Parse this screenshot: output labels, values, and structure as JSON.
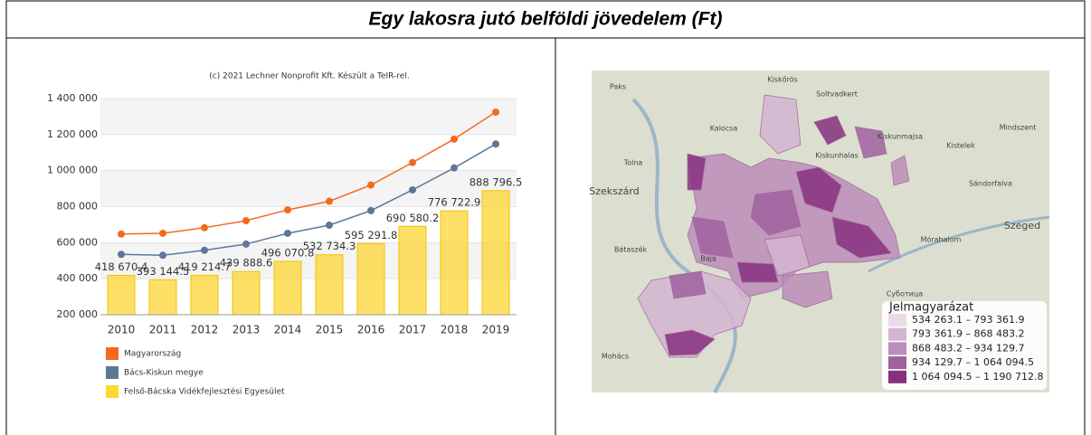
{
  "header": {
    "title": "Egy lakosra jutó belföldi jövedelem (Ft)"
  },
  "chart_data": {
    "type": "combo",
    "subtitle": "(c) 2021 Lechner Nonprofit Kft. Készült a TeIR-rel.",
    "categories": [
      "2010",
      "2011",
      "2012",
      "2013",
      "2014",
      "2015",
      "2016",
      "2017",
      "2018",
      "2019"
    ],
    "ylim": [
      200000,
      1400000
    ],
    "yticks": [
      {
        "value": 200000,
        "label": "200 000"
      },
      {
        "value": 400000,
        "label": "400 000"
      },
      {
        "value": 600000,
        "label": "600 000"
      },
      {
        "value": 800000,
        "label": "800 000"
      },
      {
        "value": 1000000,
        "label": "1 000 000"
      },
      {
        "value": 1200000,
        "label": "1 200 000"
      },
      {
        "value": 1400000,
        "label": "1 400 000"
      }
    ],
    "grid": true,
    "alternate_bands": true,
    "series": [
      {
        "name": "Magyarország",
        "type": "line",
        "color": "#f26b1d",
        "values": [
          648000,
          652000,
          683000,
          722000,
          782000,
          830000,
          920000,
          1045000,
          1175000,
          1325000
        ]
      },
      {
        "name": "Bács-Kiskun megye",
        "type": "line",
        "color": "#5c7899",
        "values": [
          535000,
          530000,
          558000,
          592000,
          652000,
          697000,
          778000,
          893000,
          1015000,
          1148000
        ]
      },
      {
        "name": "Felső-Bácska Vidékfejlesztési Egyesület",
        "type": "bar",
        "color": "#ffd633",
        "values": [
          418670.4,
          393144.5,
          419214.7,
          439888.6,
          496070.8,
          532734.3,
          595291.8,
          690580.2,
          776722.9,
          888796.5
        ],
        "value_labels": [
          "418 670.4",
          "393 144.5",
          "419 214.7",
          "439 888.6",
          "496 070.8",
          "532 734.3",
          "595 291.8",
          "690 580.2",
          "776 722.9",
          "888 796.5"
        ]
      }
    ]
  },
  "map": {
    "places": [
      "Paks",
      "Kiskőrös",
      "Soltvadkert",
      "Kalocsa",
      "Kiskunmajsa",
      "Kistelek",
      "Mindszent",
      "Kiskunhalas",
      "Tolna",
      "Szekszárd",
      "Sándorfalva",
      "Szeged",
      "Mórahalom",
      "Bátaszék",
      "Baja",
      "Суботица",
      "Mohács"
    ],
    "legend": {
      "title": "Jelmagyarázat",
      "items": [
        {
          "label": "534 263.1 –  793 361.9",
          "color": "#eadbe7"
        },
        {
          "label": "793 361.9 –  868 483.2",
          "color": "#d4b5d1"
        },
        {
          "label": "868 483.2 –  934 129.7",
          "color": "#bb8dba"
        },
        {
          "label": "934 129.7 – 1 064 094.5",
          "color": "#a0619f"
        },
        {
          "label": "1 064 094.5 – 1 190 712.8",
          "color": "#86307f"
        }
      ]
    }
  }
}
